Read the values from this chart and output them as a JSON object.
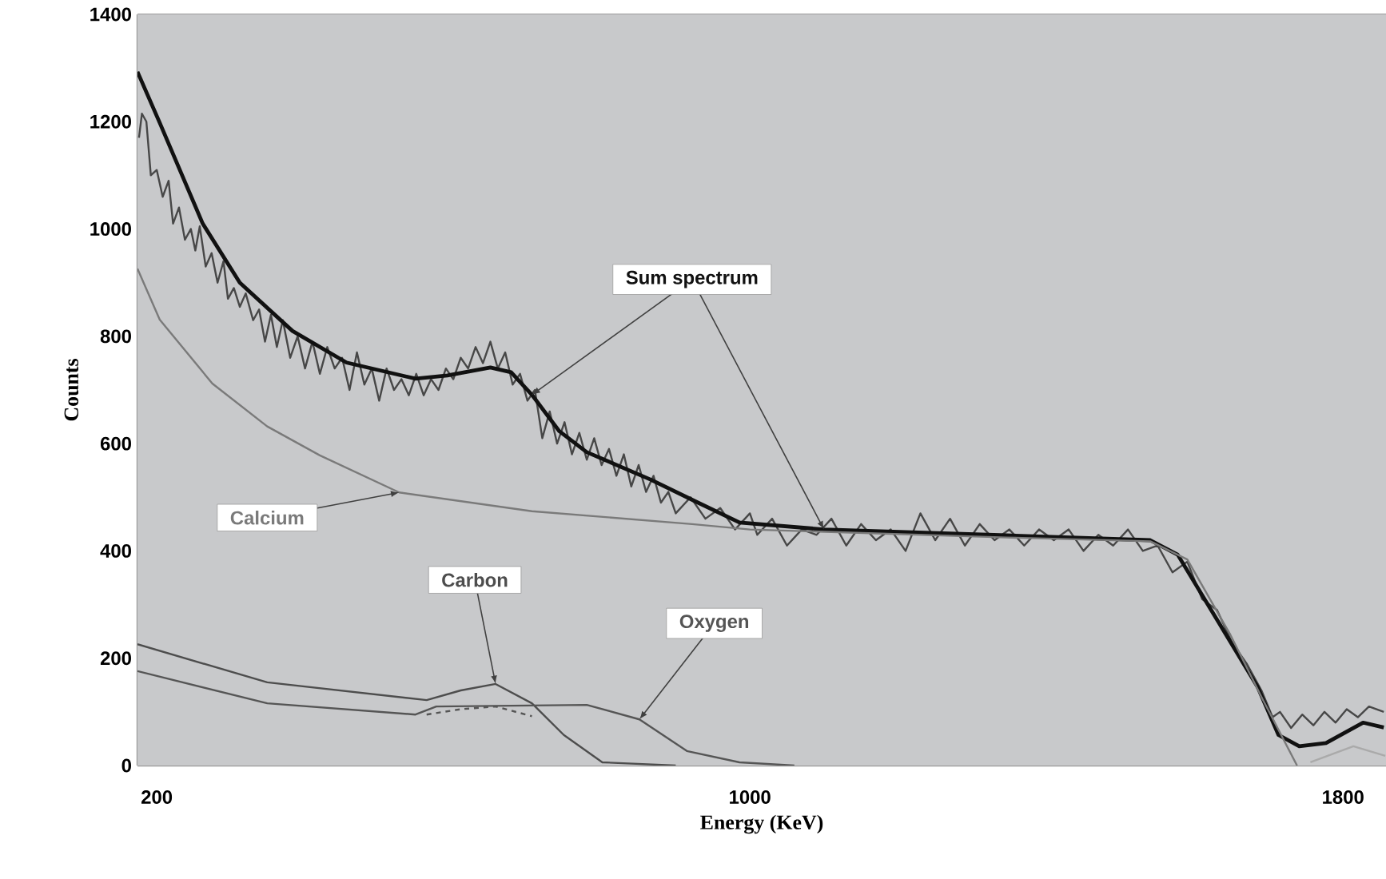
{
  "chart_data": {
    "type": "line",
    "xlabel": "Energy (KeV)",
    "ylabel": "Counts",
    "xlim": [
      174,
      1858
    ],
    "ylim": [
      0,
      1400
    ],
    "xticks": [
      200,
      1000,
      1800
    ],
    "yticks": [
      0,
      200,
      400,
      600,
      800,
      1000,
      1200,
      1400
    ],
    "grid": "y",
    "marker": "none",
    "series": [
      {
        "color": "#474747",
        "line_style": "solid",
        "x": [
          176,
          180,
          186,
          192,
          200,
          208,
          216,
          222,
          230,
          238,
          246,
          252,
          258,
          266,
          274,
          282,
          290,
          296,
          304,
          312,
          320,
          330,
          338,
          346,
          354,
          362,
          370,
          380,
          390,
          400,
          410,
          420,
          430,
          440,
          450,
          460,
          470,
          480,
          490,
          500,
          510,
          520,
          530,
          540,
          550,
          560,
          570,
          580,
          590,
          600,
          610,
          620,
          630,
          640,
          650,
          660,
          670,
          680,
          690,
          700,
          710,
          720,
          730,
          740,
          750,
          760,
          770,
          780,
          790,
          800,
          810,
          820,
          830,
          840,
          850,
          860,
          870,
          880,
          890,
          900,
          920,
          940,
          960,
          980,
          1000,
          1010,
          1030,
          1050,
          1070,
          1090,
          1110,
          1130,
          1150,
          1170,
          1190,
          1210,
          1230,
          1250,
          1270,
          1290,
          1310,
          1330,
          1350,
          1370,
          1390,
          1410,
          1430,
          1450,
          1470,
          1490,
          1510,
          1530,
          1550,
          1570,
          1590,
          1610,
          1630,
          1650,
          1670,
          1690,
          1705,
          1715,
          1730,
          1745,
          1760,
          1775,
          1790,
          1805,
          1820,
          1835,
          1855
        ],
        "values": [
          1170,
          1215,
          1200,
          1100,
          1110,
          1060,
          1090,
          1010,
          1040,
          980,
          1000,
          960,
          1005,
          930,
          955,
          900,
          940,
          870,
          890,
          855,
          880,
          830,
          850,
          790,
          840,
          780,
          830,
          760,
          800,
          740,
          790,
          730,
          780,
          740,
          760,
          700,
          770,
          710,
          740,
          680,
          740,
          700,
          720,
          690,
          730,
          690,
          720,
          700,
          740,
          720,
          760,
          740,
          780,
          750,
          790,
          740,
          770,
          710,
          730,
          680,
          700,
          610,
          660,
          600,
          640,
          580,
          620,
          570,
          610,
          560,
          590,
          540,
          580,
          520,
          560,
          510,
          540,
          490,
          510,
          470,
          500,
          460,
          480,
          440,
          470,
          430,
          460,
          410,
          440,
          430,
          460,
          410,
          450,
          420,
          440,
          400,
          470,
          420,
          460,
          410,
          450,
          420,
          440,
          410,
          440,
          420,
          440,
          400,
          430,
          410,
          440,
          400,
          410,
          360,
          380,
          310,
          290,
          230,
          190,
          140,
          90,
          100,
          70,
          95,
          75,
          100,
          80,
          105,
          90,
          110,
          100
        ]
      },
      {
        "name": "Sum spectrum",
        "color": "#111111",
        "line_style": "solid",
        "x": [
          174,
          204,
          262,
          312,
          383,
          456,
          549,
          592,
          650,
          678,
          706,
          743,
          780,
          866,
          930,
          986,
          1100,
          1346,
          1540,
          1577,
          1633,
          1685,
          1713,
          1741,
          1777,
          1827,
          1855
        ],
        "values": [
          1293,
          1198,
          1010,
          900,
          810,
          751,
          721,
          727,
          742,
          733,
          691,
          623,
          584,
          533,
          490,
          453,
          440,
          429,
          420,
          393,
          265,
          146,
          57,
          36,
          42,
          80,
          71
        ]
      },
      {
        "name": "Calcium",
        "color": "#7a7a7a",
        "line_style": "solid",
        "x": [
          174,
          204,
          275,
          349,
          420,
          527,
          706,
          922,
          1000,
          1346,
          1540,
          1590,
          1648,
          1691,
          1738
        ],
        "values": [
          926,
          831,
          712,
          632,
          578,
          509,
          474,
          450,
          440,
          425,
          418,
          384,
          244,
          125,
          0
        ]
      },
      {
        "color": "#aaaaaa",
        "line_style": "solid",
        "x": [
          1756,
          1814,
          1857
        ],
        "values": [
          6,
          36,
          18
        ]
      },
      {
        "name": "Carbon",
        "color": "#4d4d4d",
        "line_style": "solid",
        "x": [
          174,
          349,
          564,
          610,
          657,
          706,
          749,
          801,
          900
        ],
        "values": [
          226,
          155,
          122,
          140,
          152,
          116,
          57,
          6,
          0
        ]
      },
      {
        "name": "Oxygen",
        "color": "#555555",
        "line_style": "solid",
        "x": [
          174,
          349,
          549,
          577,
          780,
          851,
          915,
          986,
          1060
        ],
        "values": [
          176,
          116,
          95,
          110,
          113,
          86,
          27,
          6,
          0
        ]
      },
      {
        "color": "#555555",
        "line_style": "dashed",
        "x": [
          564,
          610,
          657,
          706
        ],
        "values": [
          95,
          105,
          110,
          92
        ]
      }
    ]
  }
}
